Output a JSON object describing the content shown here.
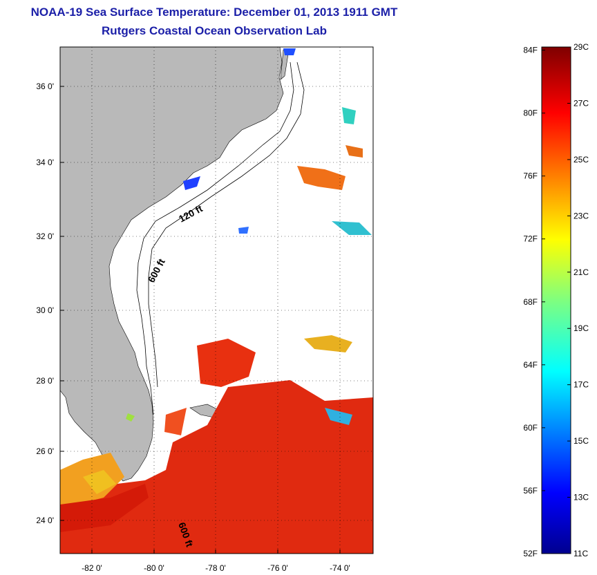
{
  "header": {
    "title": "NOAA-19 Sea Surface Temperature:  December 01, 2013 1911 GMT",
    "subtitle": "Rutgers Coastal Ocean Observation Lab"
  },
  "map": {
    "lon_ticks": [
      "-82 0'",
      "-80 0'",
      "-78 0'",
      "-76 0'",
      "-74 0'"
    ],
    "lat_ticks": [
      "36 0'",
      "34 0'",
      "32 0'",
      "30 0'",
      "28 0'",
      "26 0'",
      "24 0'"
    ],
    "contour_labels": [
      "120 ft",
      "600 ft",
      "600 ft"
    ],
    "colors": {
      "land": "#b8b8b8",
      "ocean": "#ffffff"
    }
  },
  "colorbar": {
    "fahrenheit": [
      "84F",
      "80F",
      "76F",
      "72F",
      "68F",
      "64F",
      "60F",
      "56F",
      "52F"
    ],
    "celsius": [
      "29C",
      "27C",
      "25C",
      "23C",
      "21C",
      "19C",
      "17C",
      "15C",
      "13C",
      "11C"
    ]
  }
}
